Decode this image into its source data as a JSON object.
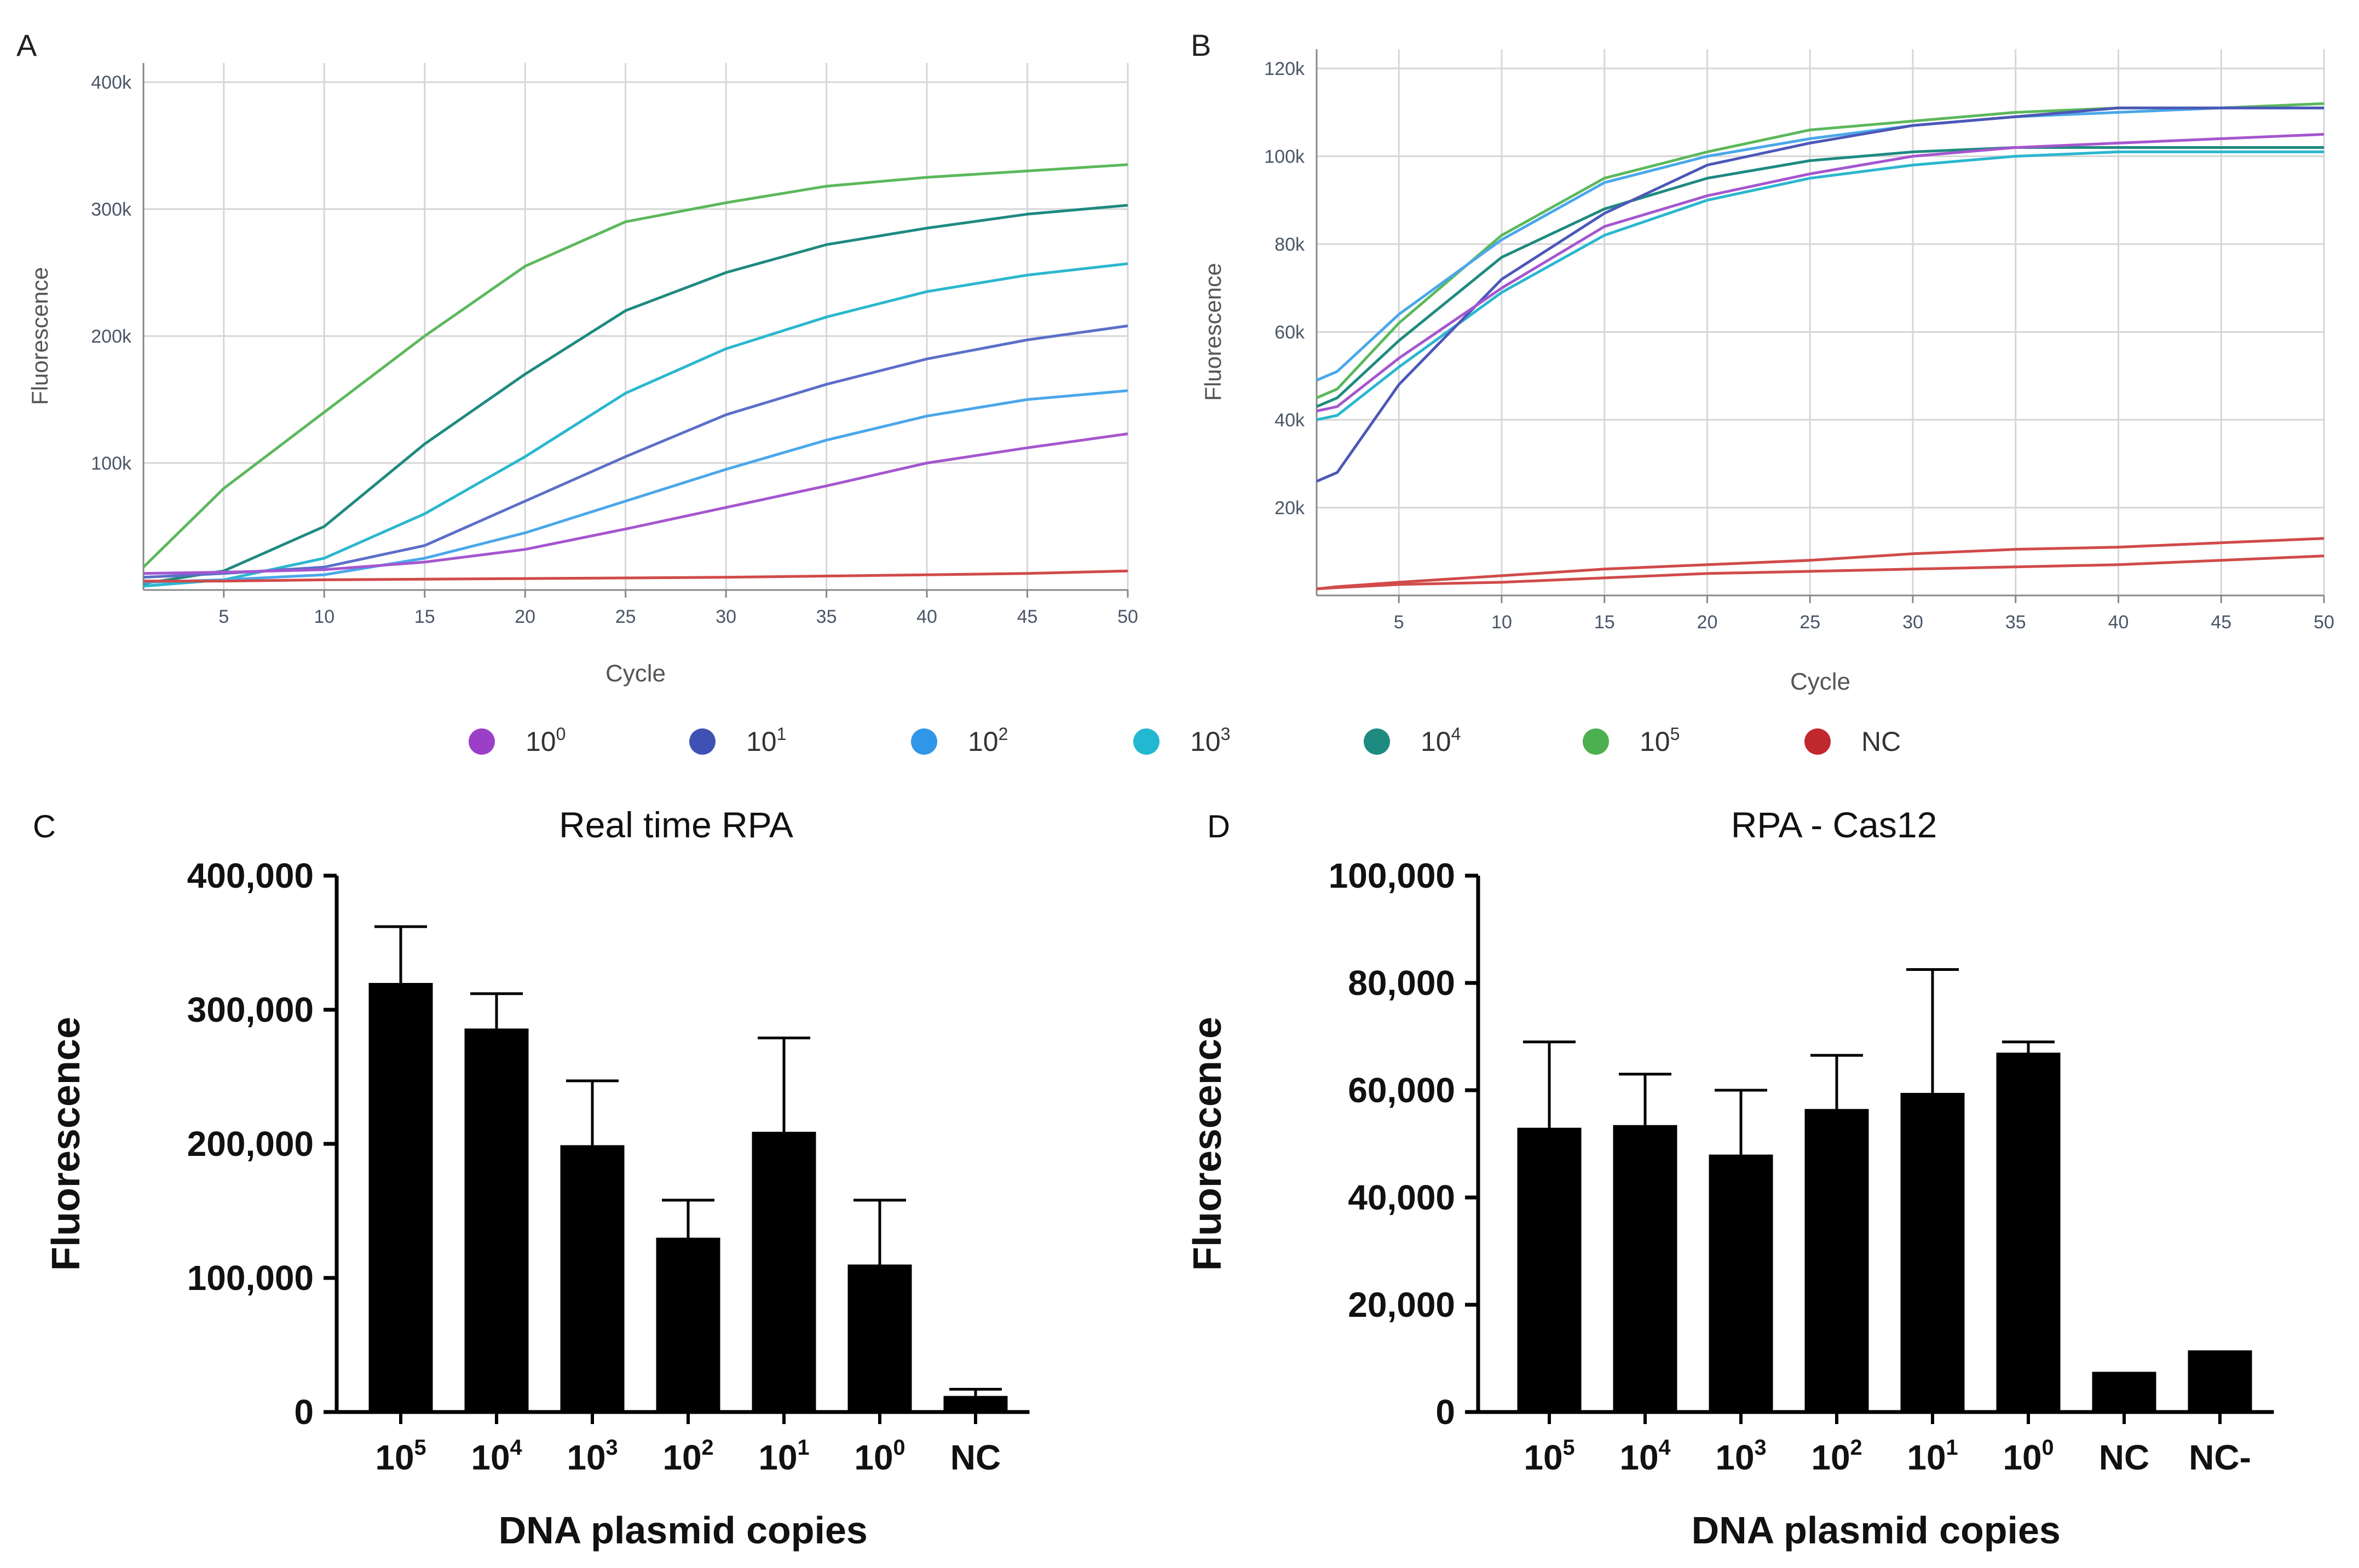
{
  "figure": {
    "panel_labels": [
      "A",
      "B",
      "C",
      "D"
    ],
    "legend": {
      "entries": [
        {
          "base": "10",
          "exp": "0",
          "color": "#9c3fc8"
        },
        {
          "base": "10",
          "exp": "1",
          "color": "#3f51b5"
        },
        {
          "base": "10",
          "exp": "2",
          "color": "#2f96e8"
        },
        {
          "base": "10",
          "exp": "3",
          "color": "#22b8d1"
        },
        {
          "base": "10",
          "exp": "4",
          "color": "#1e8a80"
        },
        {
          "base": "10",
          "exp": "5",
          "color": "#4caf50"
        },
        {
          "base": "NC",
          "exp": "",
          "color": "#c0282d"
        }
      ]
    }
  },
  "chart_data": [
    {
      "panel": "A",
      "type": "line",
      "title": "",
      "xlabel": "Cycle",
      "ylabel": "Fluorescence",
      "xlim": [
        1,
        50
      ],
      "ylim": [
        0,
        400000
      ],
      "xticks": [
        5,
        10,
        15,
        20,
        25,
        30,
        35,
        40,
        45,
        50
      ],
      "yticks": [
        100000,
        200000,
        300000,
        400000
      ],
      "ytick_labels": [
        "100k",
        "200k",
        "300k",
        "400k"
      ],
      "grid": true,
      "x": [
        1,
        5,
        10,
        15,
        20,
        25,
        30,
        35,
        40,
        45,
        50
      ],
      "series": [
        {
          "name": "10^5",
          "color": "#5cb85c",
          "values": [
            18000,
            80000,
            140000,
            200000,
            255000,
            290000,
            305000,
            318000,
            325000,
            330000,
            335000
          ]
        },
        {
          "name": "10^4",
          "color": "#1e8a80",
          "values": [
            5000,
            15000,
            50000,
            115000,
            170000,
            220000,
            250000,
            272000,
            285000,
            296000,
            303000
          ]
        },
        {
          "name": "10^3",
          "color": "#2ab7cf",
          "values": [
            3000,
            8000,
            25000,
            60000,
            105000,
            155000,
            190000,
            215000,
            235000,
            248000,
            257000
          ]
        },
        {
          "name": "10^1",
          "color": "#5b6fc8",
          "values": [
            10000,
            13000,
            18000,
            35000,
            70000,
            105000,
            138000,
            162000,
            182000,
            197000,
            208000
          ]
        },
        {
          "name": "10^2",
          "color": "#4aa7ea",
          "values": [
            6000,
            8000,
            12000,
            25000,
            45000,
            70000,
            95000,
            118000,
            137000,
            150000,
            157000
          ]
        },
        {
          "name": "10^0",
          "color": "#a556cf",
          "values": [
            13000,
            14000,
            16000,
            22000,
            32000,
            48000,
            65000,
            82000,
            100000,
            112000,
            123000
          ]
        },
        {
          "name": "NC",
          "color": "#d14a4a",
          "values": [
            7000,
            7000,
            8000,
            8500,
            9000,
            9500,
            10000,
            11000,
            12000,
            13000,
            15000
          ]
        }
      ]
    },
    {
      "panel": "B",
      "type": "line",
      "title": "",
      "xlabel": "Cycle",
      "ylabel": "Fluorescence",
      "xlim": [
        1,
        50
      ],
      "ylim": [
        0,
        120000
      ],
      "xticks": [
        5,
        10,
        15,
        20,
        25,
        30,
        35,
        40,
        45,
        50
      ],
      "yticks": [
        20000,
        40000,
        60000,
        80000,
        100000,
        120000
      ],
      "ytick_labels": [
        "20k",
        "40k",
        "60k",
        "80k",
        "100k",
        "120k"
      ],
      "grid": true,
      "x": [
        1,
        2,
        5,
        10,
        15,
        20,
        25,
        30,
        35,
        40,
        45,
        50
      ],
      "series": [
        {
          "name": "10^5",
          "color": "#5cb85c",
          "values": [
            45000,
            47000,
            62000,
            82000,
            95000,
            101000,
            106000,
            108000,
            110000,
            111000,
            111000,
            112000
          ]
        },
        {
          "name": "10^4",
          "color": "#1e8a80",
          "values": [
            43000,
            45000,
            58000,
            77000,
            88000,
            95000,
            99000,
            101000,
            102000,
            102000,
            102000,
            102000
          ]
        },
        {
          "name": "10^3",
          "color": "#2ab7cf",
          "values": [
            40000,
            41000,
            52000,
            69000,
            82000,
            90000,
            95000,
            98000,
            100000,
            101000,
            101000,
            101000
          ]
        },
        {
          "name": "10^2",
          "color": "#4aa7ea",
          "values": [
            49000,
            51000,
            64000,
            81000,
            94000,
            100000,
            104000,
            107000,
            109000,
            110000,
            111000,
            111000
          ]
        },
        {
          "name": "10^1",
          "color": "#4c57b8",
          "values": [
            26000,
            28000,
            48000,
            72000,
            87000,
            98000,
            103000,
            107000,
            109000,
            111000,
            111000,
            111000
          ]
        },
        {
          "name": "10^0",
          "color": "#a556cf",
          "values": [
            42000,
            43000,
            54000,
            70000,
            84000,
            91000,
            96000,
            100000,
            102000,
            103000,
            104000,
            105000
          ]
        },
        {
          "name": "NC",
          "color": "#d14a4a",
          "values": [
            1500,
            2000,
            3000,
            4500,
            6000,
            7000,
            8000,
            9500,
            10500,
            11000,
            12000,
            13000
          ]
        },
        {
          "name": "NC",
          "color": "#d14a4a",
          "values": [
            1500,
            1800,
            2500,
            3000,
            4000,
            5000,
            5500,
            6000,
            6500,
            7000,
            8000,
            9000
          ]
        }
      ]
    },
    {
      "panel": "C",
      "type": "bar",
      "title": "Real time RPA",
      "xlabel": "DNA plasmid copies",
      "ylabel": "Fluorescence",
      "ylim": [
        0,
        400000
      ],
      "yticks": [
        0,
        100000,
        200000,
        300000,
        400000
      ],
      "ytick_labels": [
        "0",
        "100,000",
        "200,000",
        "300,000",
        "400,000"
      ],
      "categories": [
        {
          "base": "10",
          "exp": "5"
        },
        {
          "base": "10",
          "exp": "4"
        },
        {
          "base": "10",
          "exp": "3"
        },
        {
          "base": "10",
          "exp": "2"
        },
        {
          "base": "10",
          "exp": "1"
        },
        {
          "base": "10",
          "exp": "0"
        },
        {
          "base": "NC",
          "exp": ""
        }
      ],
      "values": [
        320000,
        286000,
        199000,
        130000,
        209000,
        110000,
        12000
      ],
      "errors": [
        42000,
        26000,
        48000,
        28000,
        70000,
        48000,
        5000
      ]
    },
    {
      "panel": "D",
      "type": "bar",
      "title": "RPA - Cas12",
      "xlabel": "DNA plasmid copies",
      "ylabel": "Fluorescence",
      "ylim": [
        0,
        100000
      ],
      "yticks": [
        0,
        20000,
        40000,
        60000,
        80000,
        100000
      ],
      "ytick_labels": [
        "0",
        "20,000",
        "40,000",
        "60,000",
        "80,000",
        "100,000"
      ],
      "categories": [
        {
          "base": "10",
          "exp": "5"
        },
        {
          "base": "10",
          "exp": "4"
        },
        {
          "base": "10",
          "exp": "3"
        },
        {
          "base": "10",
          "exp": "2"
        },
        {
          "base": "10",
          "exp": "1"
        },
        {
          "base": "10",
          "exp": "0"
        },
        {
          "base": "NC",
          "exp": ""
        },
        {
          "base": "NC-",
          "exp": ""
        }
      ],
      "values": [
        53000,
        53500,
        48000,
        56500,
        59500,
        67000,
        7500,
        11500
      ],
      "errors": [
        16000,
        9500,
        12000,
        10000,
        23000,
        2000,
        0,
        0
      ]
    }
  ]
}
